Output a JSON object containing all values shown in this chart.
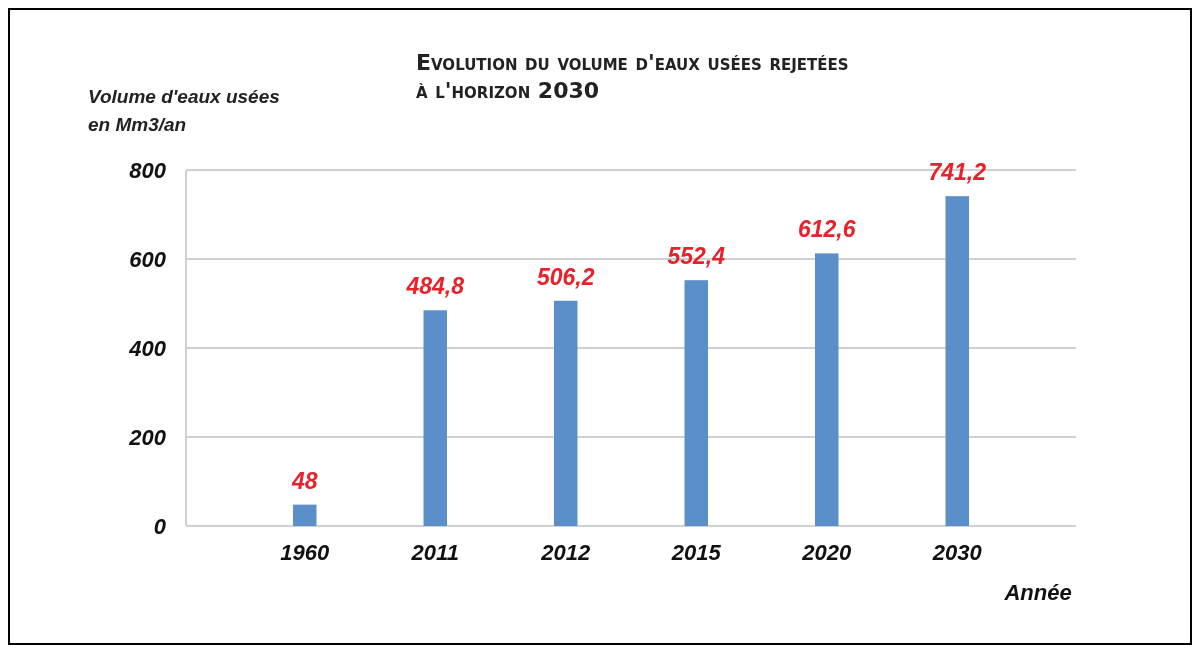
{
  "chart_data": {
    "type": "bar",
    "title": "Evolution du volume d'eaux usées rejetées à l'horizon 2030",
    "ylabel": "Volume d'eaux usées en Mm3/an",
    "xlabel": "Année",
    "categories": [
      "1960",
      "2011",
      "2012",
      "2015",
      "2020",
      "2030"
    ],
    "values": [
      48,
      484.8,
      506.2,
      552.4,
      612.6,
      741.2
    ],
    "value_labels": [
      "48",
      "484,8",
      "506,2",
      "552,4",
      "612,6",
      "741,2"
    ],
    "color": "#5b8fc9",
    "ylim": [
      0,
      800
    ],
    "yticks": [
      0,
      200,
      400,
      600,
      800
    ],
    "grid": "y"
  }
}
